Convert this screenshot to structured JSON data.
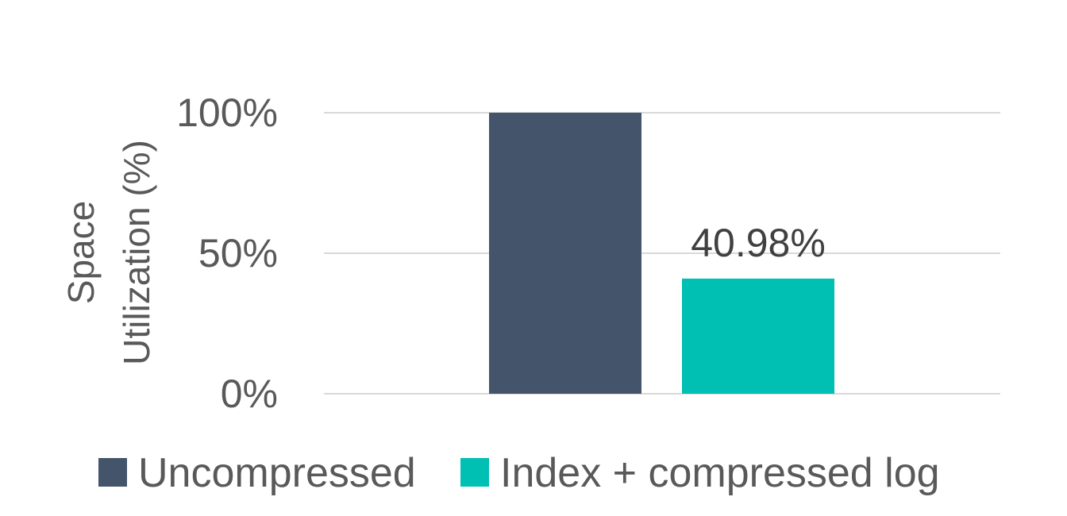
{
  "chart_data": {
    "type": "bar",
    "title": "",
    "xlabel": "",
    "ylabel_lines": [
      "Space",
      "Utilization (%)"
    ],
    "ylim": [
      0,
      100
    ],
    "yticks": [
      {
        "value": 0,
        "label": "0%"
      },
      {
        "value": 50,
        "label": "50%"
      },
      {
        "value": 100,
        "label": "100%"
      }
    ],
    "grid": true,
    "legend_position": "bottom",
    "series": [
      {
        "name": "Uncompressed",
        "value": 100,
        "color": "#44546a",
        "data_label": ""
      },
      {
        "name": "Index + compressed log",
        "value": 40.98,
        "color": "#00bfb3",
        "data_label": "40.98%"
      }
    ]
  }
}
